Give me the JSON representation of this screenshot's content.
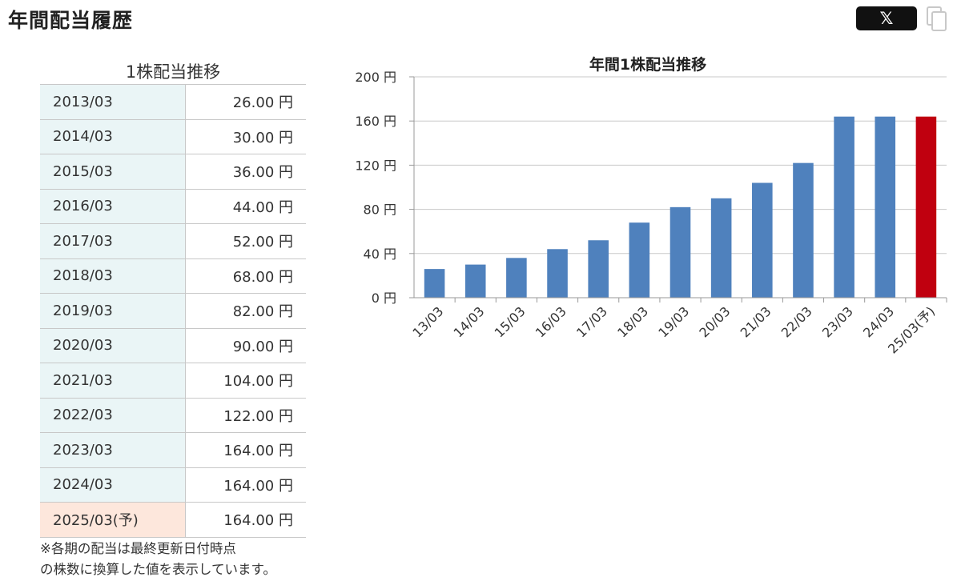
{
  "header": {
    "title": "年間配当履歴",
    "x_button_label": "𝕏",
    "copy_icon": "copy-icon"
  },
  "table": {
    "caption": "1株配当推移",
    "rows": [
      {
        "year": "2013/03",
        "amount": "26.00 円"
      },
      {
        "year": "2014/03",
        "amount": "30.00 円"
      },
      {
        "year": "2015/03",
        "amount": "36.00 円"
      },
      {
        "year": "2016/03",
        "amount": "44.00 円"
      },
      {
        "year": "2017/03",
        "amount": "52.00 円"
      },
      {
        "year": "2018/03",
        "amount": "68.00 円"
      },
      {
        "year": "2019/03",
        "amount": "82.00 円"
      },
      {
        "year": "2020/03",
        "amount": "90.00 円"
      },
      {
        "year": "2021/03",
        "amount": "104.00 円"
      },
      {
        "year": "2022/03",
        "amount": "122.00 円"
      },
      {
        "year": "2023/03",
        "amount": "164.00 円"
      },
      {
        "year": "2024/03",
        "amount": "164.00 円"
      },
      {
        "year": "2025/03(予)",
        "amount": "164.00 円",
        "forecast": true
      }
    ],
    "footnote_line1": "※各期の配当は最終更新日付時点",
    "footnote_line2": "の株数に換算した値を表示しています。"
  },
  "colors": {
    "bar": "#4f81bd",
    "forecast_bar": "#c0000f",
    "grid": "#c8c8c8",
    "year_cell": "#eaf5f6",
    "forecast_cell": "#fde7dc"
  },
  "chart_data": {
    "type": "bar",
    "title": "年間1株配当推移",
    "categories": [
      "13/03",
      "14/03",
      "15/03",
      "16/03",
      "17/03",
      "18/03",
      "19/03",
      "20/03",
      "21/03",
      "22/03",
      "23/03",
      "24/03",
      "25/03(予)"
    ],
    "values": [
      26,
      30,
      36,
      44,
      52,
      68,
      82,
      90,
      104,
      122,
      164,
      164,
      164
    ],
    "forecast_index": 12,
    "ylim": [
      0,
      200
    ],
    "yticks": [
      "0 円",
      "40 円",
      "80 円",
      "120 円",
      "160 円",
      "200 円"
    ],
    "grid": true,
    "legend": "none"
  }
}
